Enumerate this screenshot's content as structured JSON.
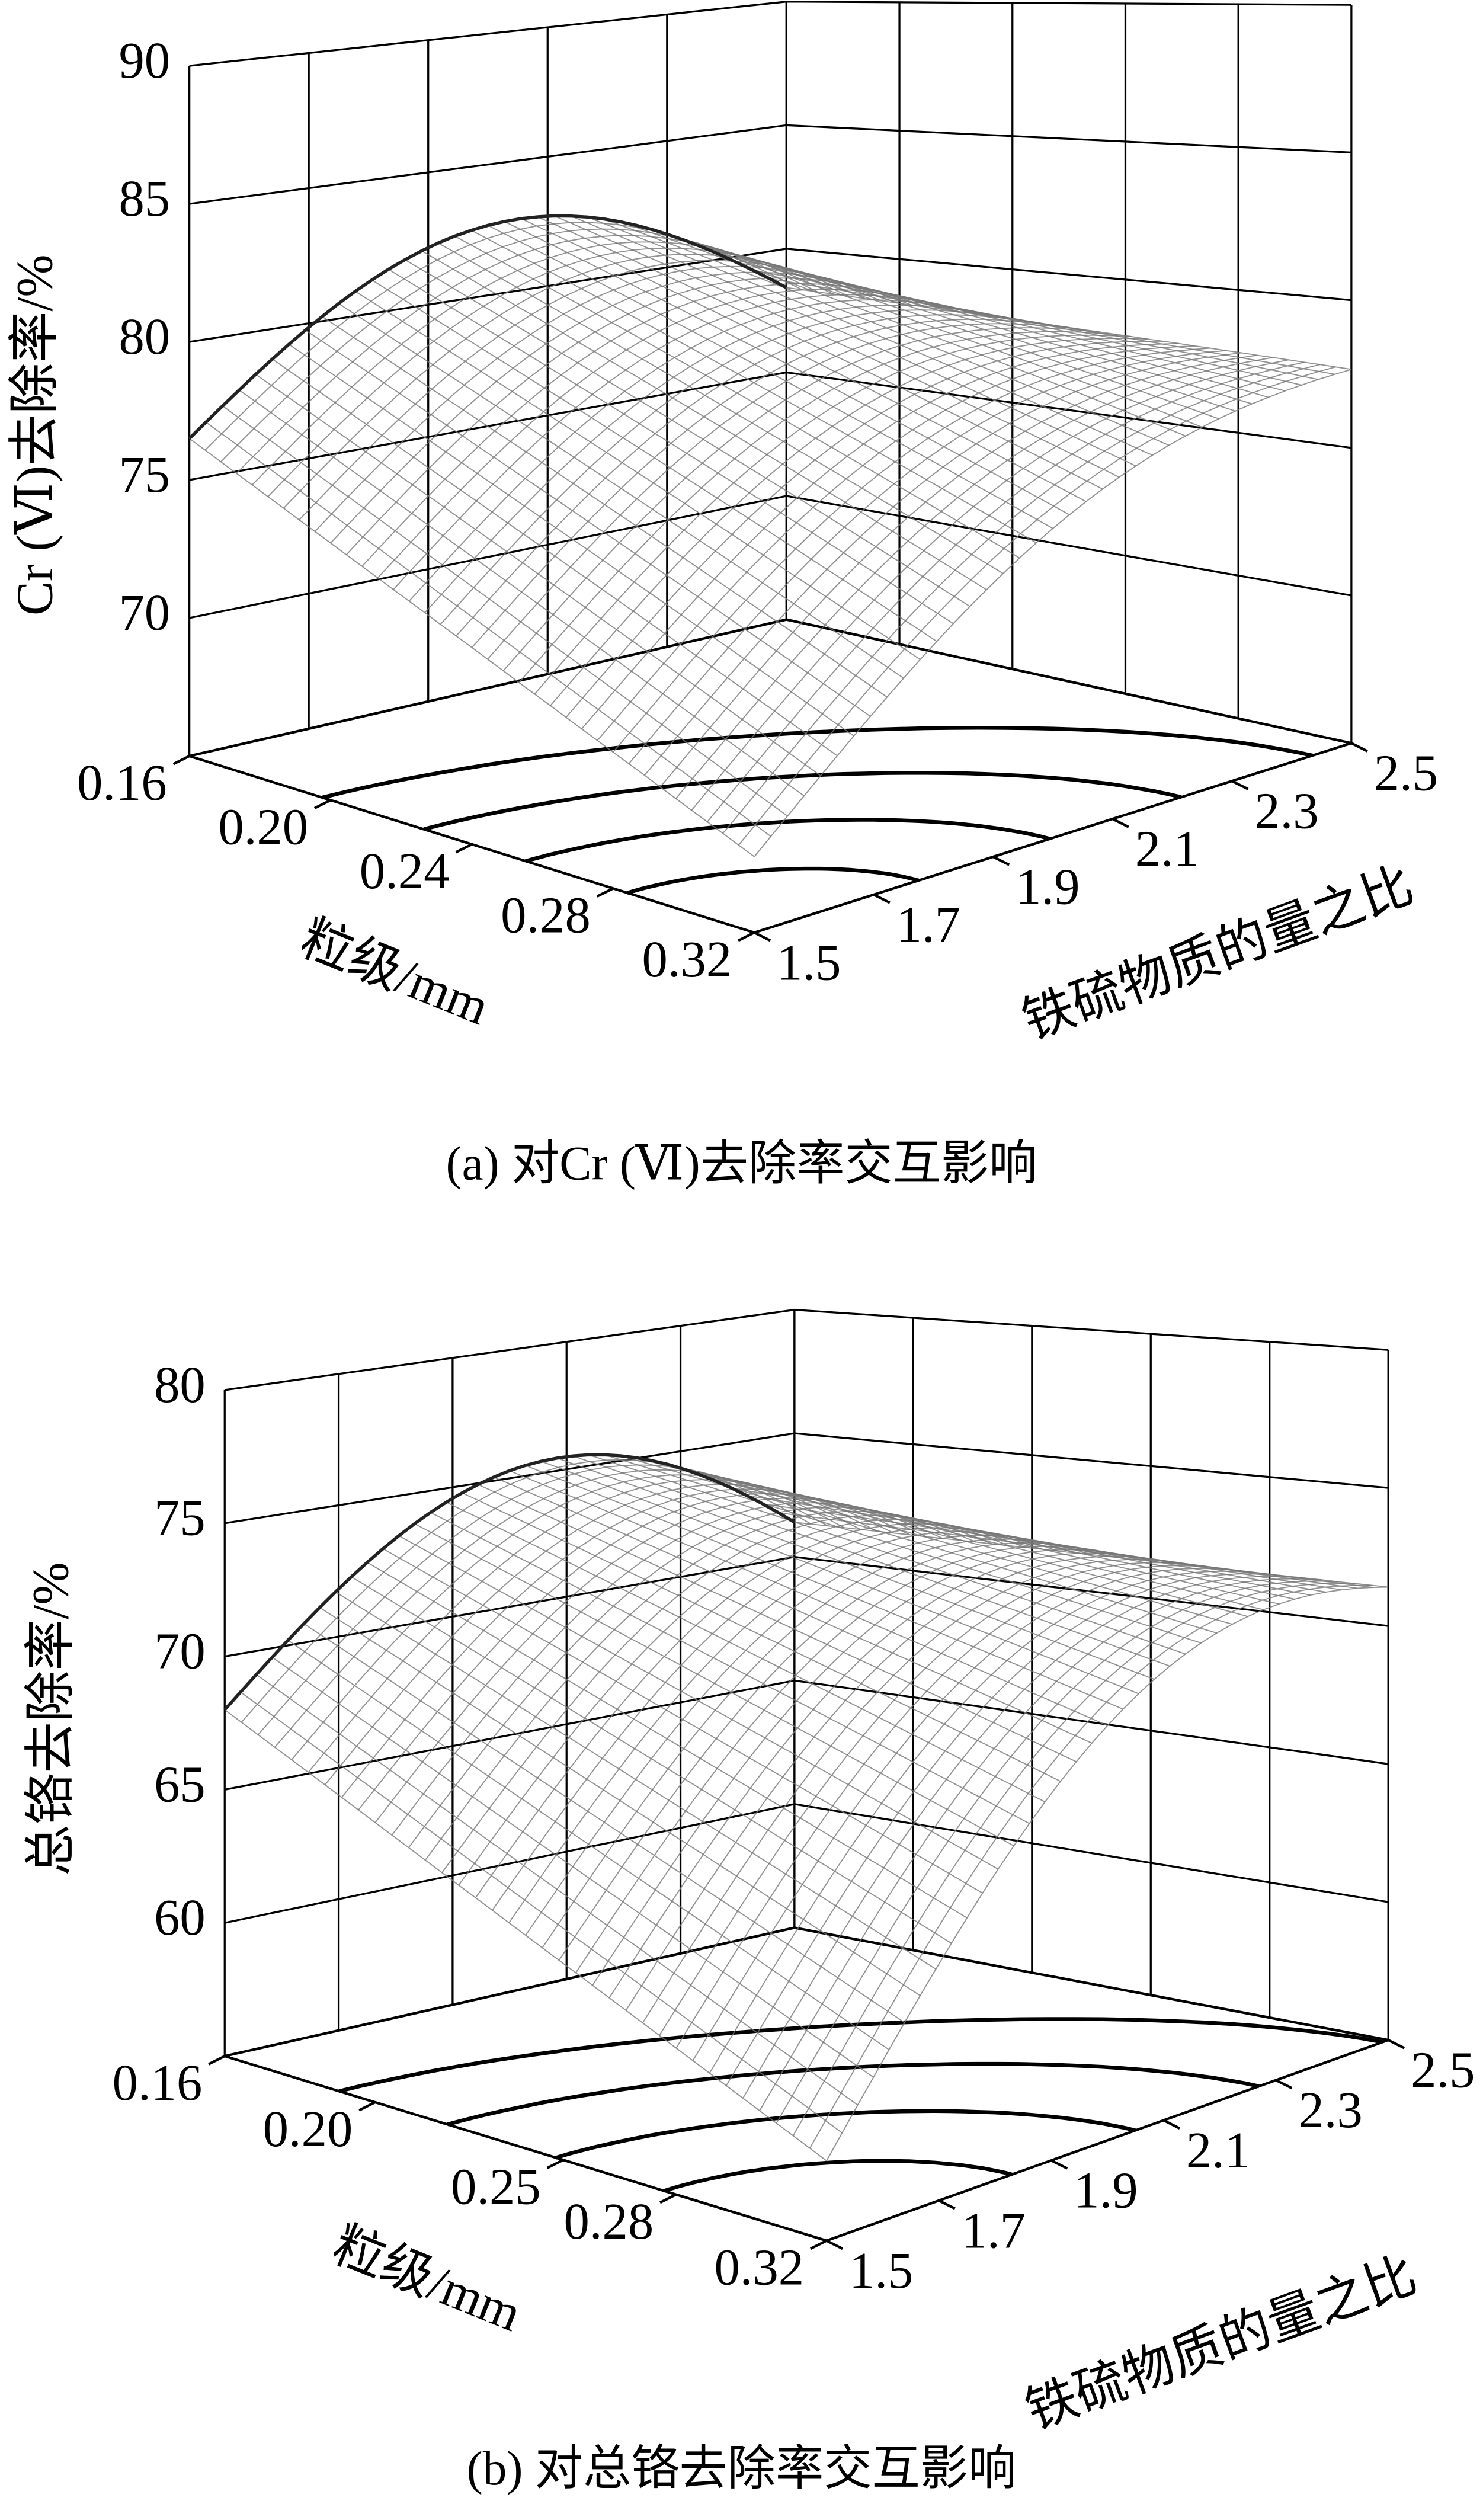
{
  "chart_data": [
    {
      "type": "surface3d",
      "title": "(a)  对Cr (Ⅵ)去除率交互影响",
      "zlabel": "Cr (Ⅵ)去除率/%",
      "xlabel": "粒级/mm",
      "ylabel": "铁硫物质的量之比",
      "xlim": [
        0.16,
        0.32
      ],
      "xticks": [
        0.16,
        {
          "value": 0.2,
          "label": "0.20"
        },
        0.24,
        0.28,
        0.32
      ],
      "ylim": [
        1.5,
        2.5
      ],
      "yticks": [
        1.5,
        1.7,
        1.9,
        2.1,
        2.3,
        2.5
      ],
      "zlim": [
        65,
        90
      ],
      "zticks": [
        70,
        75,
        80,
        85,
        90
      ],
      "grid": true
    },
    {
      "type": "surface3d",
      "title": "(b)  对总铬去除率交互影响",
      "zlabel": "总铬去除率/%",
      "xlabel": "粒级/mm",
      "ylabel": "铁硫物质的量之比",
      "xlim": [
        0.16,
        0.32
      ],
      "xticks": [
        0.16,
        {
          "value": 0.2,
          "label": "0.20"
        },
        0.25,
        0.28,
        0.32
      ],
      "ylim": [
        1.5,
        2.5
      ],
      "yticks": [
        1.5,
        1.7,
        1.9,
        2.1,
        2.3,
        2.5
      ],
      "zlim": [
        55,
        80
      ],
      "zticks": [
        60,
        65,
        70,
        75,
        80
      ],
      "grid": true
    }
  ]
}
